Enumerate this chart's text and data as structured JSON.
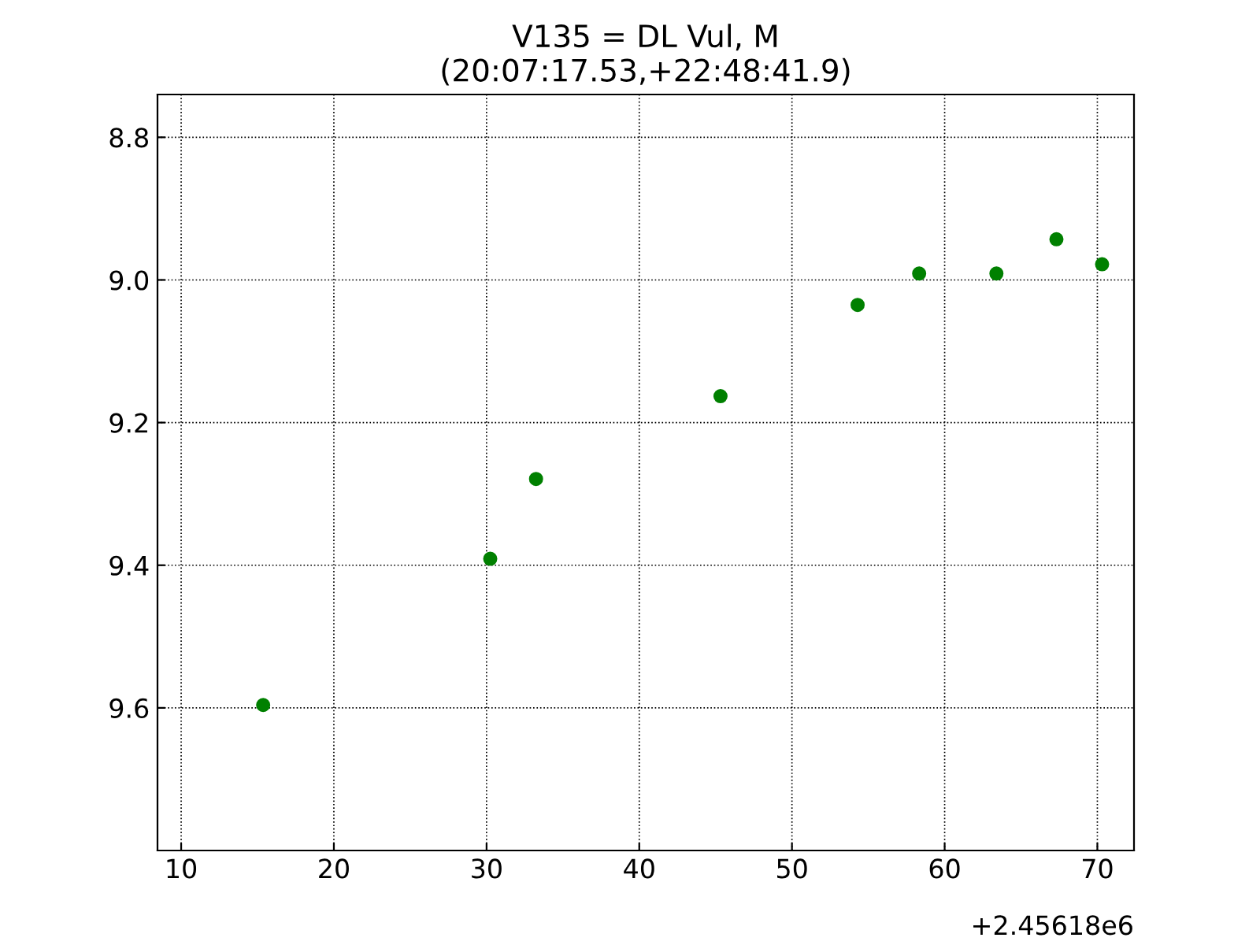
{
  "chart_data": {
    "type": "scatter",
    "title": "V135 = DL Vul, M\n(20:07:17.53,+22:48:41.9)",
    "x": [
      15.37,
      30.24,
      33.24,
      45.32,
      54.3,
      58.33,
      63.39,
      67.32,
      70.31
    ],
    "series": [
      {
        "color": "#008000",
        "values": [
          9.596,
          9.391,
          9.279,
          9.163,
          9.035,
          8.991,
          8.991,
          8.943,
          8.978
        ]
      }
    ],
    "xlim": [
      8.45,
      72.4
    ],
    "xticks": [
      10,
      20,
      30,
      40,
      50,
      60,
      70
    ],
    "ylim": [
      9.8,
      8.74
    ],
    "yticks": [
      {
        "value": 8.8,
        "label": "8.8"
      },
      {
        "value": 9.0,
        "label": "9.0"
      },
      {
        "value": 9.2,
        "label": "9.2"
      },
      {
        "value": 9.4,
        "label": "9.4"
      },
      {
        "value": 9.6,
        "label": "9.6"
      }
    ],
    "annotations": [
      "+2.45618e6"
    ],
    "grid": true,
    "marker": "circle",
    "line_style": "dotted"
  }
}
